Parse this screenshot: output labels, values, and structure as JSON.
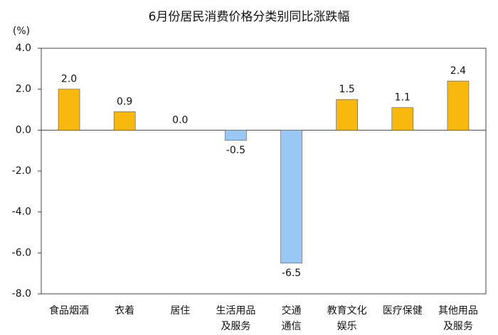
{
  "chart_data": {
    "type": "bar",
    "title": "6月份居民消费价格分类别同比涨跌幅",
    "y_label": "(%)",
    "categories": [
      [
        "食品烟酒"
      ],
      [
        "衣着"
      ],
      [
        "居住"
      ],
      [
        "生活用品",
        "及服务"
      ],
      [
        "交通",
        "通信"
      ],
      [
        "教育文化",
        "娱乐"
      ],
      [
        "医疗保健"
      ],
      [
        "其他用品",
        "及服务"
      ]
    ],
    "values": [
      2.0,
      0.9,
      0.0,
      -0.5,
      -6.5,
      1.5,
      1.1,
      2.4
    ],
    "value_labels": [
      "2.0",
      "0.9",
      "0.0",
      "-0.5",
      "-6.5",
      "1.5",
      "1.1",
      "2.4"
    ],
    "colors": [
      "#f9b80e",
      "#f9b80e",
      "#f9b80e",
      "#99c8f5",
      "#99c8f5",
      "#f9b80e",
      "#f9b80e",
      "#f9b80e"
    ],
    "ylim": [
      -8,
      4
    ],
    "yticks": [
      {
        "value": 4,
        "label": "4.0"
      },
      {
        "value": 2,
        "label": "2.0"
      },
      {
        "value": 0,
        "label": "0.0"
      },
      {
        "value": -2,
        "label": "-2.0"
      },
      {
        "value": -4,
        "label": "-4.0"
      },
      {
        "value": -6,
        "label": "-6.0"
      },
      {
        "value": -8,
        "label": "-8.0"
      }
    ]
  }
}
